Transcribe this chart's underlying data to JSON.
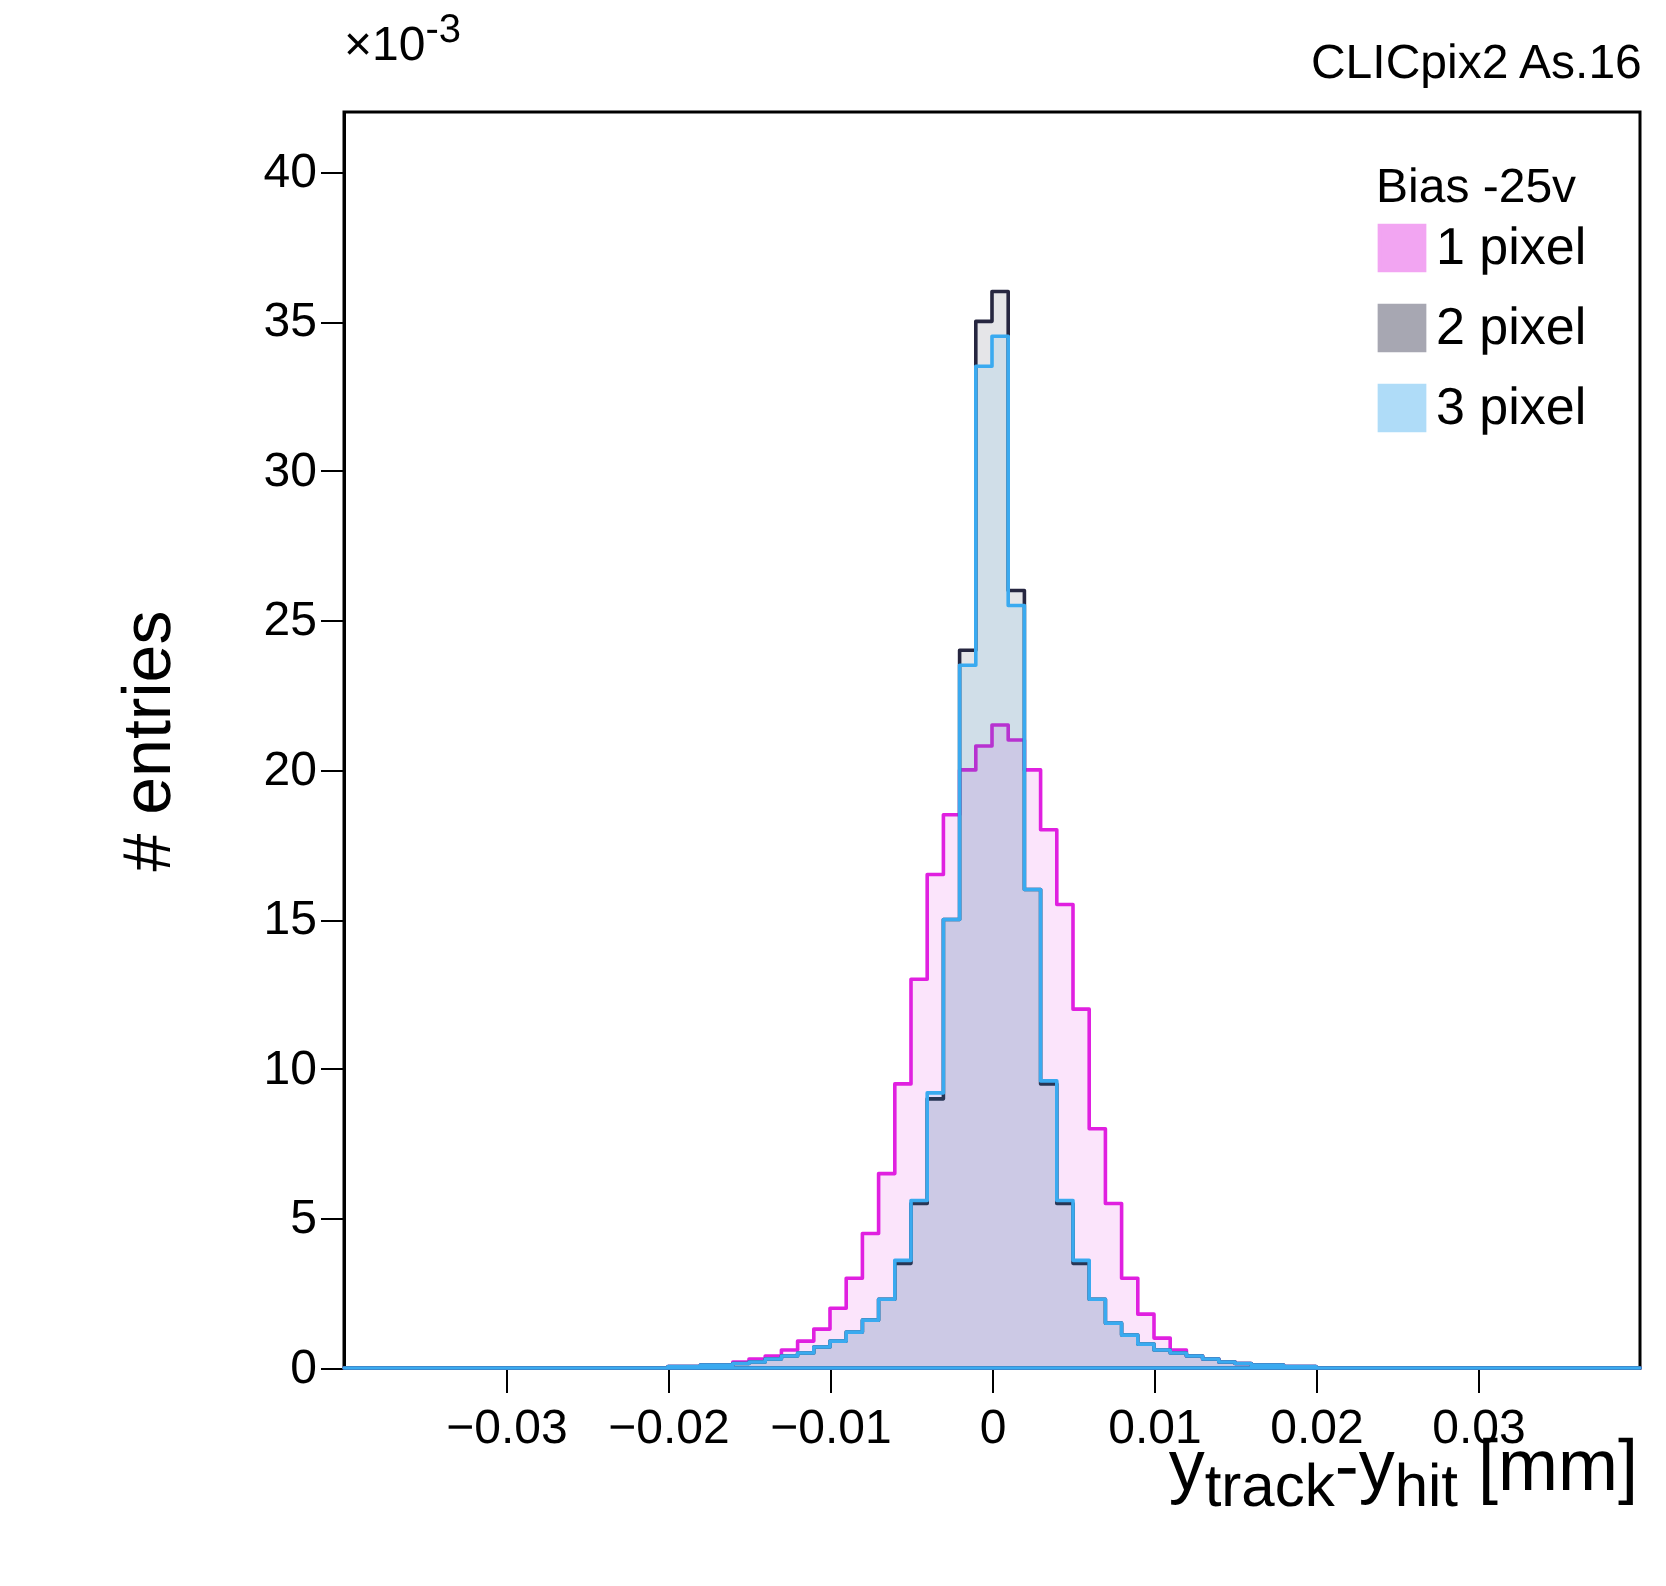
{
  "chart_data": {
    "type": "histogram",
    "title": "CLICpix2 As.16",
    "xlabel": "y$_{track}$-y$_{hit}$ [mm]",
    "ylabel": "# entries",
    "legend_title": "Bias -25v",
    "annotations": [
      "×10$^{-3}$"
    ],
    "bins": [
      -0.04,
      -0.02,
      -0.019,
      -0.018,
      -0.017,
      -0.016,
      -0.015,
      -0.014,
      -0.013,
      -0.012,
      -0.011,
      -0.01,
      -0.009,
      -0.008,
      -0.007,
      -0.006,
      -0.005,
      -0.004,
      -0.003,
      -0.002,
      -0.001,
      0,
      0.001,
      0.002,
      0.003,
      0.004,
      0.005,
      0.006,
      0.007,
      0.008,
      0.009,
      0.01,
      0.011,
      0.012,
      0.013,
      0.014,
      0.015,
      0.016,
      0.017,
      0.018,
      0.019,
      0.02,
      0.04
    ],
    "series": [
      {
        "name": "1 pixel",
        "color": "#e020e0",
        "values": [
          0,
          0.05,
          0.05,
          0.1,
          0.1,
          0.2,
          0.3,
          0.4,
          0.6,
          0.9,
          1.3,
          2.0,
          3.0,
          4.5,
          6.5,
          9.5,
          13.0,
          16.5,
          18.5,
          20.0,
          20.8,
          21.5,
          21.0,
          20.0,
          18.0,
          15.5,
          12.0,
          8.0,
          5.5,
          3.0,
          1.8,
          1.0,
          0.6,
          0.4,
          0.3,
          0.2,
          0.15,
          0.1,
          0.1,
          0.05,
          0.05,
          0
        ]
      },
      {
        "name": "2 pixel",
        "color": "#262640",
        "values": [
          0,
          0.05,
          0.05,
          0.1,
          0.1,
          0.15,
          0.2,
          0.3,
          0.4,
          0.5,
          0.7,
          0.9,
          1.2,
          1.6,
          2.3,
          3.5,
          5.5,
          9,
          15,
          24,
          35,
          36,
          26,
          16,
          9.5,
          5.5,
          3.5,
          2.3,
          1.5,
          1.1,
          0.8,
          0.6,
          0.5,
          0.4,
          0.3,
          0.2,
          0.15,
          0.1,
          0.1,
          0.05,
          0.05,
          0
        ]
      },
      {
        "name": "3 pixel",
        "color": "#3aaaf0",
        "values": [
          0,
          0.05,
          0.05,
          0.1,
          0.1,
          0.15,
          0.2,
          0.3,
          0.4,
          0.5,
          0.7,
          0.9,
          1.2,
          1.6,
          2.3,
          3.6,
          5.6,
          9.2,
          15,
          23.5,
          33.5,
          34.5,
          25.5,
          16,
          9.6,
          5.6,
          3.6,
          2.3,
          1.5,
          1.1,
          0.8,
          0.6,
          0.5,
          0.4,
          0.3,
          0.2,
          0.15,
          0.1,
          0.1,
          0.05,
          0.05,
          0
        ]
      }
    ],
    "xlim": [
      -0.04,
      0.04
    ],
    "xticks": [
      -0.03,
      -0.02,
      -0.01,
      0,
      0.01,
      0.02,
      0.03
    ],
    "ylim": [
      0,
      42
    ],
    "yticks": [
      0,
      5,
      10,
      15,
      20,
      25,
      30,
      35,
      40
    ],
    "grid": false,
    "legend": "top right"
  }
}
